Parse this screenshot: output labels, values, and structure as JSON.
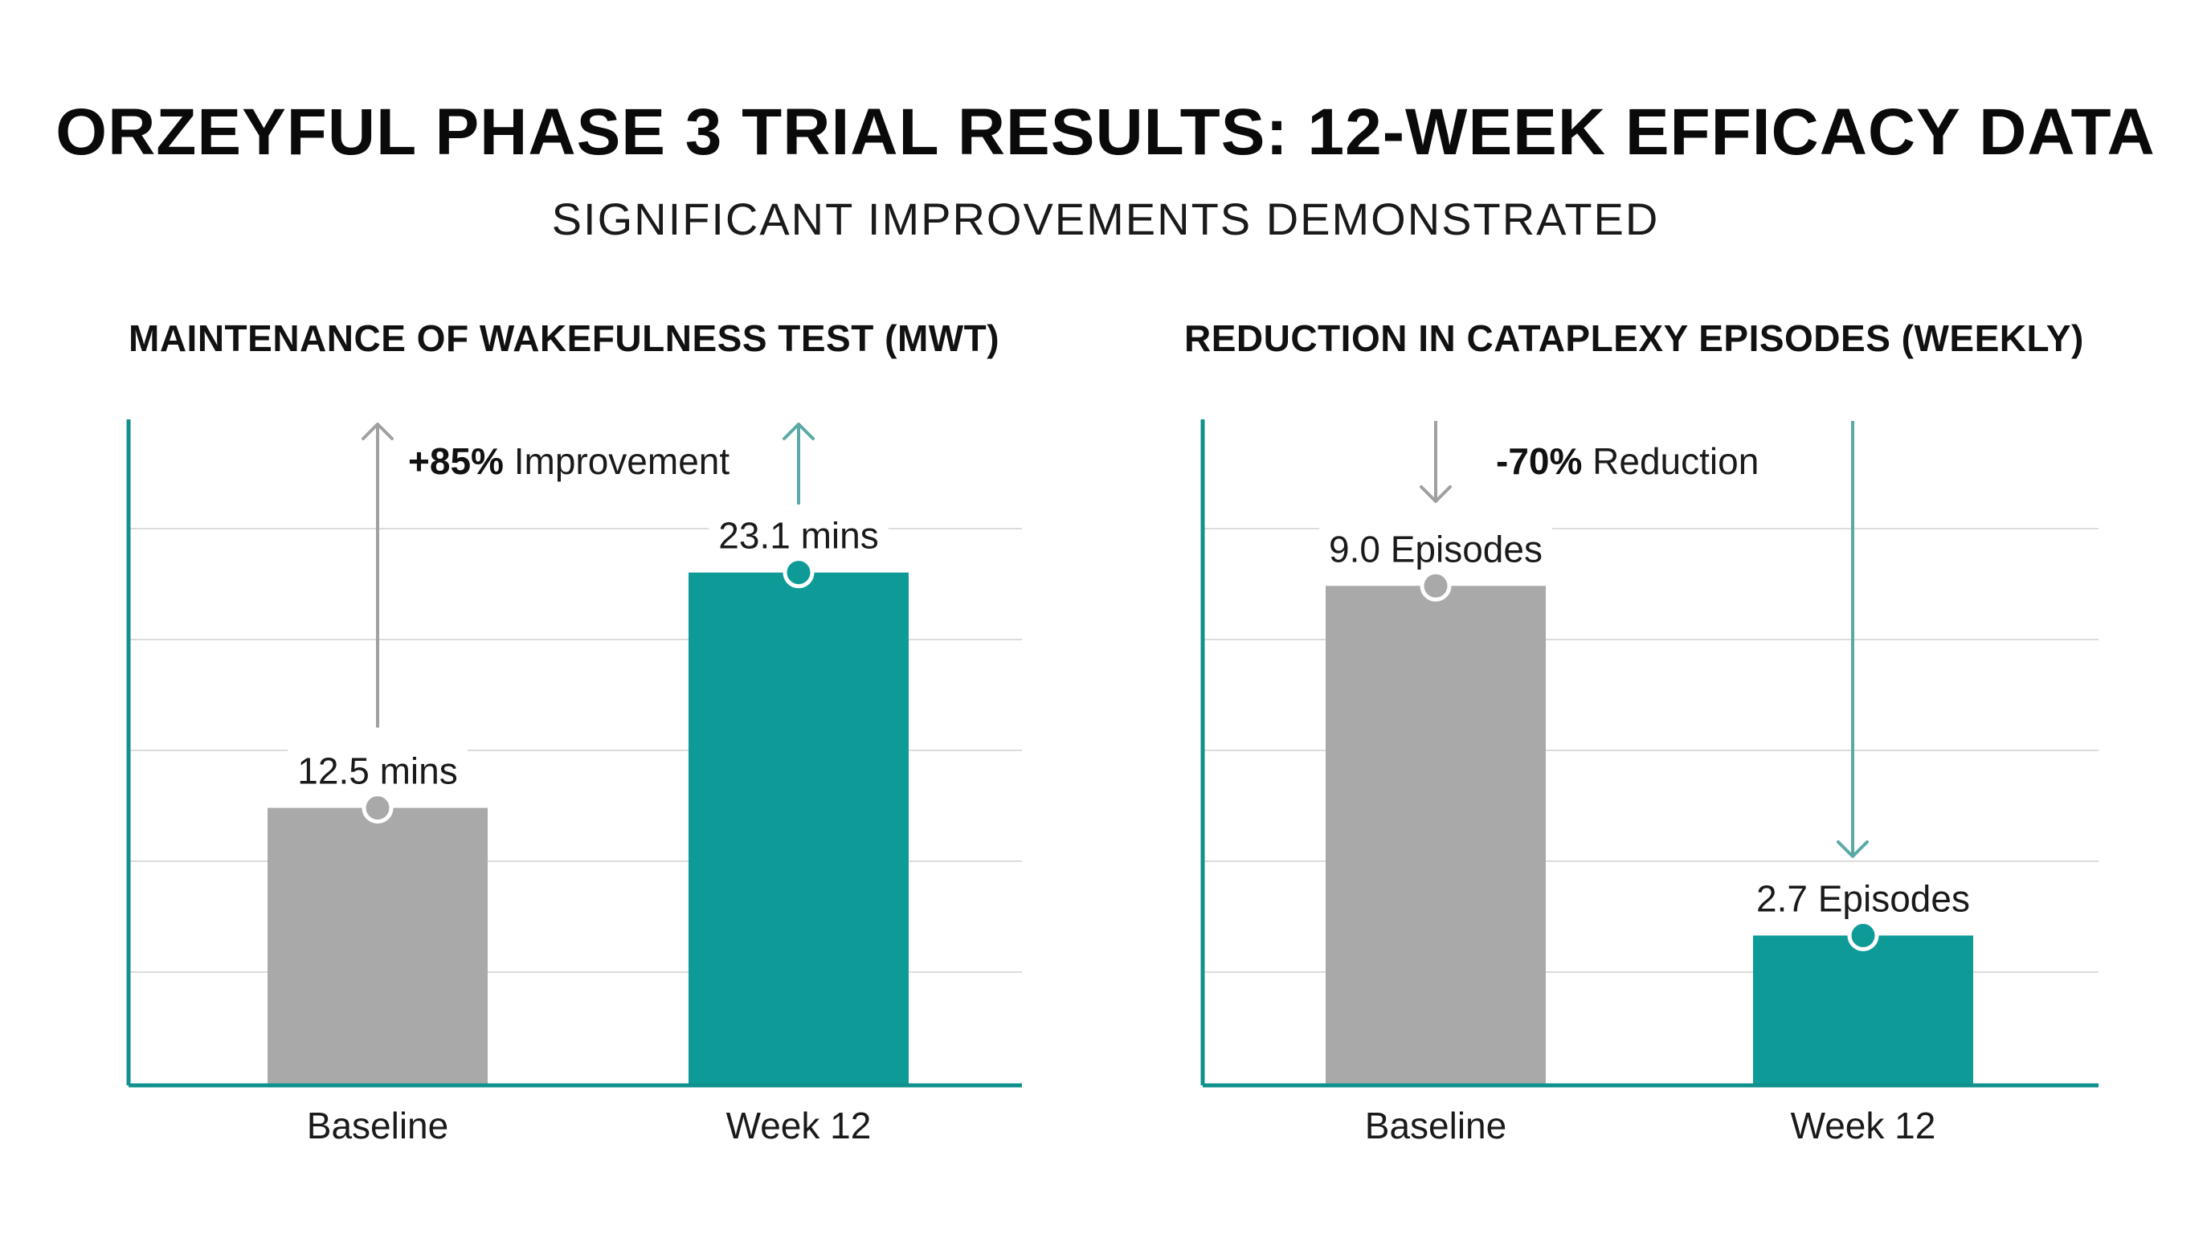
{
  "title": "ORZEYFUL PHASE 3 TRIAL RESULTS: 12-WEEK EFFICACY DATA",
  "subtitle": "SIGNIFICANT IMPROVEMENTS DEMONSTRATED",
  "colors": {
    "baseline": "#a9a9a9",
    "treatment": "#0e9b98",
    "axis": "#10918e",
    "grid": "#dcdcdc",
    "arrow_gray": "#a0a0a0",
    "arrow_teal": "#5aa9a6"
  },
  "chart_data": [
    {
      "type": "bar",
      "title": "MAINTENANCE OF WAKEFULNESS TEST (MWT)",
      "categories": [
        "Baseline",
        "Week 12"
      ],
      "values": [
        12.5,
        23.1
      ],
      "value_labels": [
        "12.5 mins",
        "23.1 mins"
      ],
      "annotation": {
        "bold": "+85%",
        "text": "Improvement",
        "direction": "up"
      },
      "ylim": [
        0,
        30
      ],
      "grid": true,
      "xlabel": "",
      "ylabel": ""
    },
    {
      "type": "bar",
      "title": "REDUCTION IN CATAPLEXY EPISODES (WEEKLY)",
      "categories": [
        "Baseline",
        "Week 12"
      ],
      "values": [
        9.0,
        2.7
      ],
      "value_labels": [
        "9.0 Episodes",
        "2.7 Episodes"
      ],
      "annotation": {
        "bold": "-70%",
        "text": "Reduction",
        "direction": "down"
      },
      "ylim": [
        0,
        12
      ],
      "grid": true,
      "xlabel": "",
      "ylabel": ""
    }
  ]
}
